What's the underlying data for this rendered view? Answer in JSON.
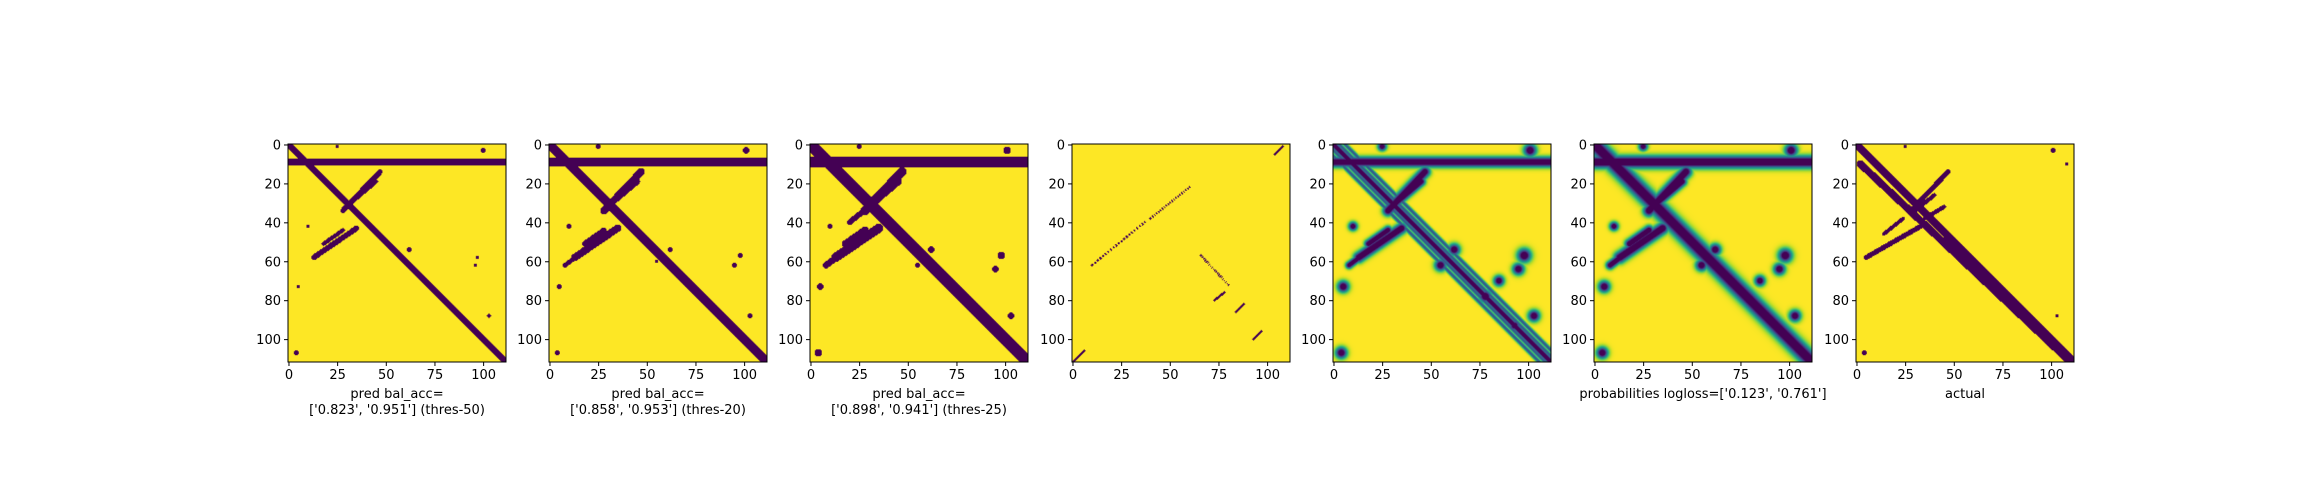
{
  "colors": {
    "background": "#fde725",
    "foreground": "#440154",
    "mid": "#21918c"
  },
  "chart_data": [
    {
      "type": "heatmap",
      "xlabel": "pred bal_acc=\n['0.823', '0.951'] (thres-50)",
      "xlim": [
        0,
        112
      ],
      "ylim": [
        112,
        0
      ],
      "xticks": [
        0,
        25,
        50,
        75,
        100
      ],
      "yticks": [
        0,
        20,
        40,
        60,
        80,
        100
      ],
      "colormap": "viridis",
      "binary": true,
      "structures": {
        "main_diagonal": true,
        "diag_width": 1.3,
        "antidiagonal_lines": [
          [
            0,
            9,
            111,
            9,
            1.6
          ]
        ],
        "upper_lines": [
          [
            28,
            34,
            47,
            14,
            1.2
          ],
          [
            32,
            30,
            45,
            19,
            0.9
          ]
        ],
        "lower_lines": [
          [
            13,
            58,
            35,
            43,
            1.2
          ],
          [
            18,
            51,
            28,
            44,
            0.9
          ]
        ],
        "blobs": [
          [
            100,
            3,
            1.2
          ],
          [
            4,
            107,
            1.0
          ],
          [
            62,
            54,
            1.0
          ],
          [
            25,
            1,
            0.8
          ],
          [
            5,
            73,
            0.8
          ],
          [
            97,
            58,
            0.8
          ],
          [
            96,
            62,
            0.8
          ],
          [
            103,
            88,
            0.9
          ],
          [
            93,
            93,
            0.8
          ],
          [
            10,
            42,
            0.8
          ]
        ]
      }
    },
    {
      "type": "heatmap",
      "xlabel": "pred bal_acc=\n['0.858', '0.953'] (thres-20)",
      "xlim": [
        0,
        112
      ],
      "ylim": [
        112,
        0
      ],
      "xticks": [
        0,
        25,
        50,
        75,
        100
      ],
      "yticks": [
        0,
        20,
        40,
        60,
        80,
        100
      ],
      "colormap": "viridis",
      "binary": true,
      "structures": {
        "main_diagonal": true,
        "diag_width": 1.9,
        "antidiagonal_lines": [
          [
            0,
            9,
            111,
            9,
            1.8
          ]
        ],
        "upper_lines": [
          [
            28,
            34,
            47,
            14,
            1.6
          ],
          [
            32,
            30,
            45,
            19,
            1.3
          ]
        ],
        "lower_lines": [
          [
            13,
            58,
            35,
            43,
            1.6
          ],
          [
            18,
            51,
            28,
            44,
            1.2
          ],
          [
            8,
            62,
            16,
            56,
            1.0
          ]
        ],
        "blobs": [
          [
            101,
            3,
            1.4
          ],
          [
            4,
            107,
            1.2
          ],
          [
            62,
            54,
            1.2
          ],
          [
            25,
            1,
            1.0
          ],
          [
            5,
            73,
            1.0
          ],
          [
            98,
            57,
            1.2
          ],
          [
            95,
            62,
            1.0
          ],
          [
            103,
            88,
            1.0
          ],
          [
            93,
            93,
            1.0
          ],
          [
            10,
            42,
            1.0
          ],
          [
            55,
            60,
            0.8
          ]
        ]
      }
    },
    {
      "type": "heatmap",
      "xlabel": "pred bal_acc=\n['0.898', '0.941'] (thres-25)",
      "xlim": [
        0,
        112
      ],
      "ylim": [
        112,
        0
      ],
      "xticks": [
        0,
        25,
        50,
        75,
        100
      ],
      "yticks": [
        0,
        20,
        40,
        60,
        80,
        100
      ],
      "colormap": "viridis",
      "binary": true,
      "structures": {
        "main_diagonal": true,
        "diag_width": 2.6,
        "antidiagonal_lines": [
          [
            0,
            9,
            111,
            9,
            2.2
          ]
        ],
        "upper_lines": [
          [
            28,
            34,
            47,
            14,
            2.0
          ],
          [
            32,
            30,
            45,
            19,
            1.6
          ],
          [
            20,
            40,
            30,
            32,
            1.2
          ]
        ],
        "lower_lines": [
          [
            13,
            58,
            35,
            43,
            2.0
          ],
          [
            18,
            51,
            28,
            44,
            1.6
          ],
          [
            8,
            62,
            16,
            56,
            1.4
          ]
        ],
        "blobs": [
          [
            101,
            3,
            1.6
          ],
          [
            4,
            107,
            1.6
          ],
          [
            62,
            54,
            1.5
          ],
          [
            25,
            1,
            1.2
          ],
          [
            5,
            73,
            1.4
          ],
          [
            98,
            57,
            1.6
          ],
          [
            95,
            64,
            1.4
          ],
          [
            103,
            88,
            1.4
          ],
          [
            93,
            93,
            1.2
          ],
          [
            10,
            42,
            1.2
          ],
          [
            78,
            78,
            1.2
          ],
          [
            55,
            62,
            1.2
          ]
        ]
      }
    },
    {
      "type": "heatmap",
      "xlabel": "",
      "xlim": [
        0,
        112
      ],
      "ylim": [
        112,
        0
      ],
      "xticks": [
        0,
        25,
        50,
        75,
        100
      ],
      "yticks": [
        0,
        20,
        40,
        60,
        80,
        100
      ],
      "colormap": "viridis",
      "binary": true,
      "structures": {
        "main_diagonal": false,
        "dashed_lines": [
          [
            10,
            62,
            37,
            40,
            0.5,
            0.6
          ],
          [
            40,
            38,
            60,
            22,
            0.5,
            0.6
          ],
          [
            104,
            5,
            108,
            1,
            0.5,
            1
          ],
          [
            0,
            112,
            6,
            106,
            0.5,
            1
          ],
          [
            66,
            57,
            80,
            72,
            0.5,
            0.5
          ],
          [
            73,
            80,
            78,
            76,
            0.5,
            1
          ],
          [
            84,
            86,
            88,
            82,
            0.5,
            1
          ],
          [
            93,
            100,
            97,
            96,
            0.5,
            1
          ]
        ]
      }
    },
    {
      "type": "heatmap",
      "xlabel": "",
      "xlim": [
        0,
        112
      ],
      "ylim": [
        112,
        0
      ],
      "xticks": [
        0,
        25,
        50,
        75,
        100
      ],
      "yticks": [
        0,
        20,
        40,
        60,
        80,
        100
      ],
      "colormap": "viridis",
      "binary": false,
      "structures": {
        "main_diagonal": true,
        "diag_width": 1.2,
        "parallel_lines": [
          3,
          -3,
          6,
          -6
        ],
        "antidiagonal_lines": [
          [
            0,
            9,
            111,
            9,
            1.8
          ]
        ],
        "upper_lines": [
          [
            28,
            34,
            47,
            14,
            1.8
          ],
          [
            32,
            30,
            45,
            19,
            1.5
          ]
        ],
        "lower_lines": [
          [
            13,
            58,
            35,
            43,
            1.8
          ],
          [
            18,
            51,
            28,
            44,
            1.4
          ],
          [
            8,
            62,
            16,
            56,
            1.2
          ]
        ],
        "blobs": [
          [
            101,
            3,
            2.2
          ],
          [
            4,
            107,
            2.0
          ],
          [
            62,
            54,
            2.0
          ],
          [
            25,
            1,
            1.5
          ],
          [
            5,
            73,
            2.0
          ],
          [
            98,
            57,
            2.4
          ],
          [
            95,
            64,
            2.0
          ],
          [
            103,
            88,
            2.0
          ],
          [
            93,
            93,
            1.8
          ],
          [
            10,
            42,
            1.5
          ],
          [
            78,
            78,
            2.2
          ],
          [
            55,
            62,
            2.0
          ],
          [
            85,
            70,
            1.8
          ]
        ]
      }
    },
    {
      "type": "heatmap",
      "xlabel": "probabilities logloss=['0.123', '0.761']",
      "xlim": [
        0,
        112
      ],
      "ylim": [
        112,
        0
      ],
      "xticks": [
        0,
        25,
        50,
        75,
        100
      ],
      "yticks": [
        0,
        20,
        40,
        60,
        80,
        100
      ],
      "colormap": "viridis",
      "binary": false,
      "structures": {
        "main_diagonal": true,
        "diag_width": 2.8,
        "antidiagonal_lines": [
          [
            0,
            9,
            111,
            9,
            2.2
          ]
        ],
        "upper_lines": [
          [
            28,
            34,
            47,
            14,
            2.0
          ],
          [
            32,
            30,
            45,
            19,
            1.6
          ]
        ],
        "lower_lines": [
          [
            13,
            58,
            35,
            43,
            2.0
          ],
          [
            18,
            51,
            28,
            44,
            1.6
          ],
          [
            8,
            62,
            16,
            56,
            1.4
          ]
        ],
        "blobs": [
          [
            101,
            3,
            2.2
          ],
          [
            4,
            107,
            2.0
          ],
          [
            62,
            54,
            2.0
          ],
          [
            25,
            1,
            1.5
          ],
          [
            5,
            73,
            2.0
          ],
          [
            98,
            57,
            2.4
          ],
          [
            95,
            64,
            2.0
          ],
          [
            103,
            88,
            2.0
          ],
          [
            93,
            93,
            1.8
          ],
          [
            10,
            42,
            1.5
          ],
          [
            78,
            78,
            2.2
          ],
          [
            55,
            62,
            2.0
          ],
          [
            85,
            70,
            1.8
          ]
        ]
      }
    },
    {
      "type": "heatmap",
      "xlabel": "actual",
      "xlim": [
        0,
        112
      ],
      "ylim": [
        112,
        0
      ],
      "xticks": [
        0,
        25,
        50,
        75,
        100
      ],
      "yticks": [
        0,
        20,
        40,
        60,
        80,
        100
      ],
      "colormap": "viridis",
      "binary": true,
      "structures": {
        "main_diagonal": true,
        "diag_width": 1.6,
        "antidiagonal_lines": [
          [
            2,
            10,
            108,
            110,
            1.6
          ]
        ],
        "upper_lines": [
          [
            28,
            34,
            47,
            14,
            1.1
          ],
          [
            30,
            34,
            40,
            26,
            0.9
          ]
        ],
        "lower_lines": [
          [
            5,
            58,
            33,
            42,
            1.1
          ],
          [
            35,
            38,
            45,
            32,
            0.9
          ],
          [
            14,
            46,
            24,
            38,
            0.8
          ]
        ],
        "blobs": [
          [
            101,
            3,
            1.0
          ],
          [
            4,
            107,
            1.0
          ],
          [
            25,
            1,
            0.8
          ],
          [
            103,
            88,
            0.8
          ],
          [
            108,
            10,
            0.8
          ]
        ]
      }
    }
  ]
}
